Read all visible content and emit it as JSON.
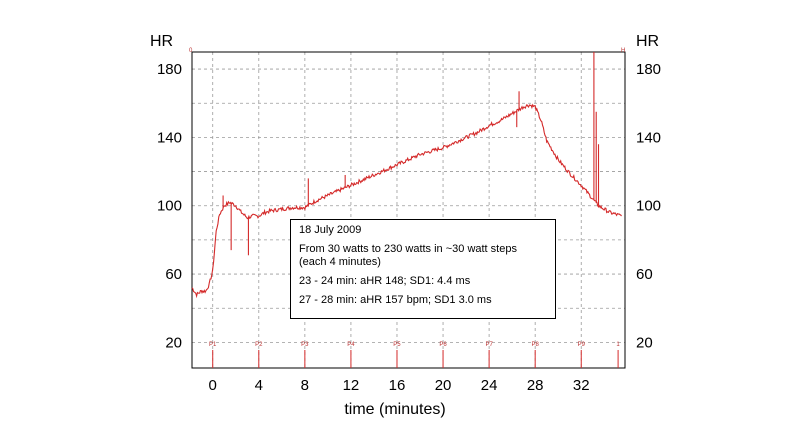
{
  "chart_data": {
    "type": "line",
    "title": "",
    "xlabel": "time (minutes)",
    "ylabel": "HR",
    "ylabel_right": "HR",
    "xlim": [
      -1.8,
      35.8
    ],
    "ylim": [
      5,
      190
    ],
    "xticks": [
      0,
      4,
      8,
      12,
      16,
      20,
      24,
      28,
      32
    ],
    "yticks": [
      20,
      60,
      100,
      140,
      180
    ],
    "grid": true,
    "color": "#d42a2a",
    "series": [
      {
        "x": [
          -1.8,
          -1.4,
          -1,
          -0.6,
          -0.3,
          0,
          0.3,
          0.6,
          1,
          1.5,
          2,
          2.5,
          3,
          3.5,
          4,
          4.5,
          5,
          6,
          7,
          8,
          8.5,
          9,
          10,
          11,
          12,
          13,
          14,
          15,
          16,
          17,
          18,
          19,
          20,
          21,
          22,
          23,
          24,
          25,
          26,
          26.5,
          27,
          27.5,
          28,
          28.5,
          29,
          30,
          31,
          32,
          32.5,
          33,
          33.5,
          34,
          34.5,
          35,
          35.5
        ],
        "y": [
          52,
          48,
          50,
          50,
          54,
          62,
          85,
          95,
          100,
          102,
          100,
          96,
          93,
          94,
          94,
          96,
          97,
          98,
          99,
          99,
          101,
          103,
          106,
          109,
          112,
          115,
          118,
          121,
          124,
          127,
          130,
          132,
          134,
          137,
          140,
          143,
          147,
          150,
          154,
          156,
          158,
          159,
          158,
          150,
          138,
          127,
          119,
          112,
          108,
          104,
          100,
          98,
          96,
          95,
          94
        ]
      }
    ],
    "spikes": [
      {
        "x": 0.9,
        "y": 106
      },
      {
        "x": 1.6,
        "y": 74
      },
      {
        "x": 3.1,
        "y": 71
      },
      {
        "x": 8.3,
        "y": 116
      },
      {
        "x": 11.5,
        "y": 118
      },
      {
        "x": 26.6,
        "y": 167
      },
      {
        "x": 26.4,
        "y": 146
      },
      {
        "x": 33.1,
        "y": 190
      },
      {
        "x": 33.3,
        "y": 155
      },
      {
        "x": 33.5,
        "y": 136
      }
    ],
    "markers": [
      {
        "x": 0,
        "label": "P1"
      },
      {
        "x": 4,
        "label": "P2"
      },
      {
        "x": 8,
        "label": "P3"
      },
      {
        "x": 12,
        "label": "P4"
      },
      {
        "x": 16,
        "label": "P5"
      },
      {
        "x": 20,
        "label": "P6"
      },
      {
        "x": 24,
        "label": "P7"
      },
      {
        "x": 28,
        "label": "P8"
      },
      {
        "x": 32,
        "label": "P9"
      },
      {
        "x": 35.2,
        "label": "1"
      }
    ],
    "corner_left": "0",
    "corner_right": "H",
    "annotation": {
      "date": "18 July 2009",
      "line1": "From 30 watts to 230 watts in ~30 watt steps",
      "line2": "(each 4 minutes)",
      "line3": "23 - 24 min: aHR 148; SD1: 4.4 ms",
      "line4": "27 - 28 min: aHR 157 bpm; SD1  3.0 ms"
    }
  }
}
